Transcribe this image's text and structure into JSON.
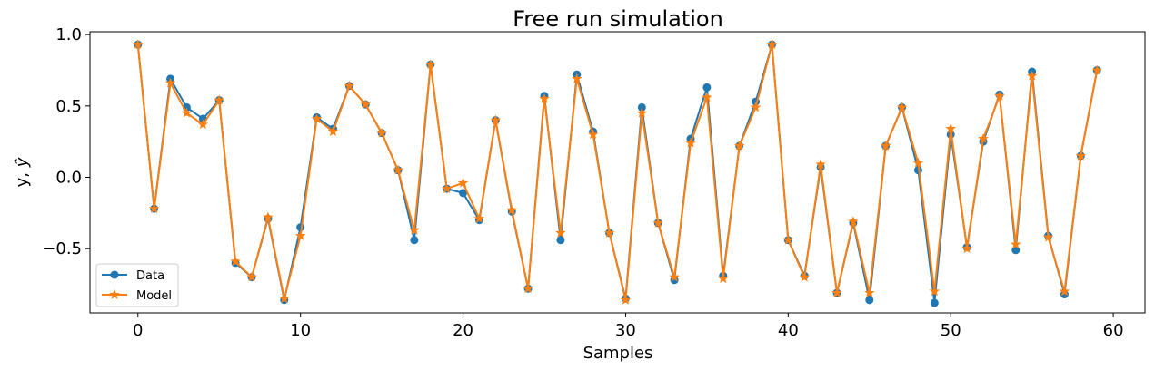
{
  "chart_data": {
    "type": "line",
    "title": "Free run simulation",
    "xlabel": "Samples",
    "ylabel_main": "y, ",
    "ylabel_hat": "ŷ",
    "xlim": [
      -2.95,
      61.95
    ],
    "ylim": [
      -0.95,
      1.02
    ],
    "xticks": [
      0,
      10,
      20,
      30,
      40,
      50,
      60
    ],
    "yticks": [
      -0.5,
      0.0,
      0.5,
      1.0
    ],
    "ytick_labels": [
      "−0.5",
      "0.0",
      "0.5",
      "1.0"
    ],
    "legend_position": "lower-left",
    "series": [
      {
        "name": "Data",
        "color": "#1f77b4",
        "marker": "circle",
        "x": [
          0,
          1,
          2,
          3,
          4,
          5,
          6,
          7,
          8,
          9,
          10,
          11,
          12,
          13,
          14,
          15,
          16,
          17,
          18,
          19,
          20,
          21,
          22,
          23,
          24,
          25,
          26,
          27,
          28,
          29,
          30,
          31,
          32,
          33,
          34,
          35,
          36,
          37,
          38,
          39,
          40,
          41,
          42,
          43,
          44,
          45,
          46,
          47,
          48,
          49,
          50,
          51,
          52,
          53,
          54,
          55,
          56,
          57,
          58,
          59
        ],
        "values": [
          0.93,
          -0.22,
          0.69,
          0.49,
          0.41,
          0.54,
          -0.6,
          -0.7,
          -0.29,
          -0.86,
          -0.35,
          0.42,
          0.34,
          0.64,
          0.51,
          0.31,
          0.05,
          -0.44,
          0.79,
          -0.08,
          -0.11,
          -0.3,
          0.4,
          -0.24,
          -0.78,
          0.57,
          -0.44,
          0.72,
          0.32,
          -0.39,
          -0.85,
          0.49,
          -0.32,
          -0.72,
          0.27,
          0.63,
          -0.69,
          0.22,
          0.53,
          0.93,
          -0.44,
          -0.69,
          0.07,
          -0.81,
          -0.32,
          -0.86,
          0.22,
          0.49,
          0.05,
          -0.88,
          0.3,
          -0.49,
          0.25,
          0.58,
          -0.51,
          0.74,
          -0.41,
          -0.82,
          0.15,
          0.75
        ]
      },
      {
        "name": "Model",
        "color": "#ff7f0e",
        "marker": "star",
        "x": [
          0,
          1,
          2,
          3,
          4,
          5,
          6,
          7,
          8,
          9,
          10,
          11,
          12,
          13,
          14,
          15,
          16,
          17,
          18,
          19,
          20,
          21,
          22,
          23,
          24,
          25,
          26,
          27,
          28,
          29,
          30,
          31,
          32,
          33,
          34,
          35,
          36,
          37,
          38,
          39,
          40,
          41,
          42,
          43,
          44,
          45,
          46,
          47,
          48,
          49,
          50,
          51,
          52,
          53,
          54,
          55,
          56,
          57,
          58,
          59
        ],
        "values": [
          0.93,
          -0.22,
          0.66,
          0.45,
          0.37,
          0.54,
          -0.59,
          -0.7,
          -0.28,
          -0.85,
          -0.41,
          0.41,
          0.32,
          0.64,
          0.51,
          0.31,
          0.05,
          -0.37,
          0.79,
          -0.08,
          -0.04,
          -0.29,
          0.4,
          -0.23,
          -0.78,
          0.55,
          -0.39,
          0.69,
          0.3,
          -0.39,
          -0.86,
          0.45,
          -0.32,
          -0.7,
          0.24,
          0.56,
          -0.71,
          0.22,
          0.49,
          0.93,
          -0.44,
          -0.7,
          0.09,
          -0.81,
          -0.31,
          -0.81,
          0.22,
          0.49,
          0.1,
          -0.8,
          0.34,
          -0.5,
          0.27,
          0.57,
          -0.47,
          0.71,
          -0.42,
          -0.8,
          0.15,
          0.75
        ]
      }
    ]
  }
}
